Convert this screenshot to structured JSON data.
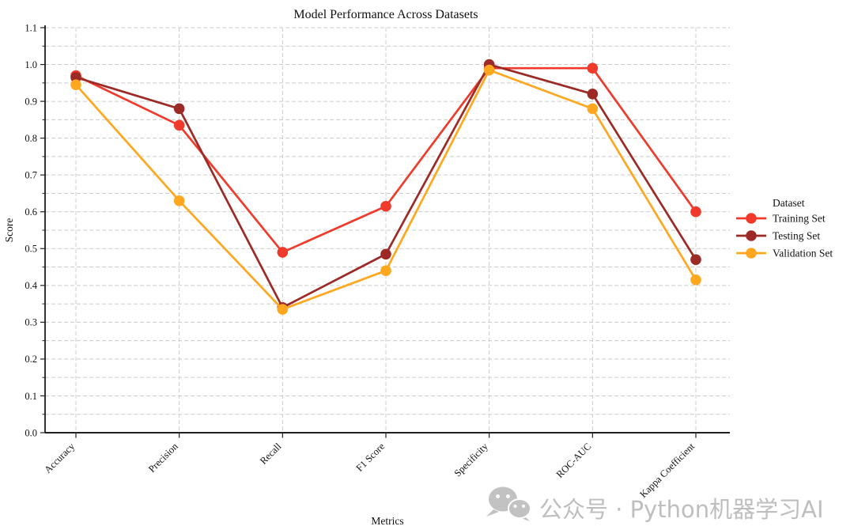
{
  "title": "Model Performance Across Datasets",
  "xlabel": "Metrics",
  "ylabel": "Score",
  "legend": {
    "title": "Dataset",
    "items": [
      {
        "label": "Training Set",
        "color": "#f03b2c"
      },
      {
        "label": "Testing Set",
        "color": "#9c2a26"
      },
      {
        "label": "Validation Set",
        "color": "#ffa71f"
      }
    ]
  },
  "watermark": {
    "icon": "wechat-icon",
    "text": "公众号 · Python机器学习AI",
    "color": "#b8b8b8"
  },
  "colors": {
    "grid": "#cbcbcb",
    "spine": "#000000",
    "background": "#ffffff"
  },
  "chart_data": {
    "type": "line",
    "title": "Model Performance Across Datasets",
    "xlabel": "Metrics",
    "ylabel": "Score",
    "categories": [
      "Accuracy",
      "Precision",
      "Recall",
      "F1 Score",
      "Specificity",
      "ROC-AUC",
      "Kappa Coefficient"
    ],
    "series": [
      {
        "name": "Training Set",
        "color": "#f03b2c",
        "values": [
          0.97,
          0.835,
          0.49,
          0.615,
          0.99,
          0.99,
          0.6
        ]
      },
      {
        "name": "Testing Set",
        "color": "#9c2a26",
        "values": [
          0.965,
          0.88,
          0.34,
          0.485,
          1.0,
          0.92,
          0.47
        ]
      },
      {
        "name": "Validation Set",
        "color": "#ffa71f",
        "values": [
          0.945,
          0.63,
          0.335,
          0.44,
          0.985,
          0.88,
          0.415
        ]
      }
    ],
    "ylim": [
      0.0,
      1.1
    ],
    "ytick_step": 0.1,
    "minor_ytick_step": 0.05,
    "grid": "dashed-both-axes",
    "legend_position": "center-right",
    "marker": "circle"
  }
}
